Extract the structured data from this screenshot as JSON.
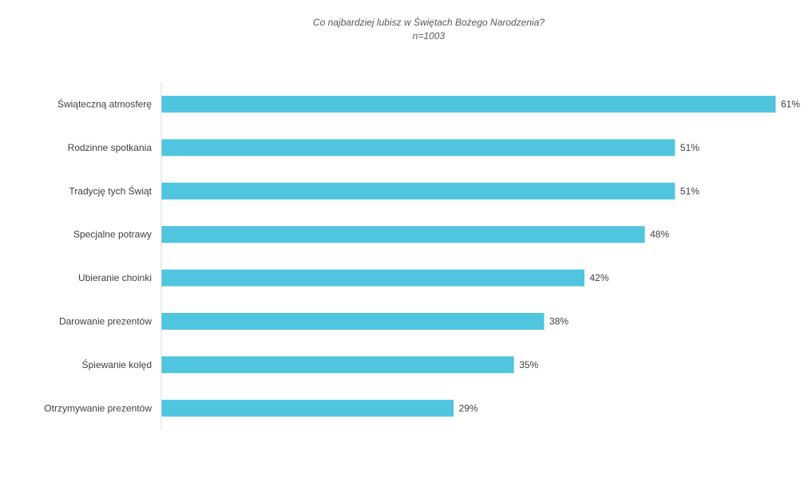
{
  "chart_data": {
    "type": "bar",
    "orientation": "horizontal",
    "title": "Co najbardziej lubisz w Świętach Bożego Narodzenia?",
    "subtitle": "n=1003",
    "categories": [
      "Świąteczną atmosferę",
      "Rodzinne spotkania",
      "Tradycję tych Świąt",
      "Specjalne potrawy",
      "Ubieranie choinki",
      "Darowanie prezentów",
      "Śpiewanie kolęd",
      "Otrzymywanie prezentów"
    ],
    "values": [
      61,
      51,
      51,
      48,
      42,
      38,
      35,
      29
    ],
    "labels": [
      "61%",
      "51%",
      "51%",
      "48%",
      "42%",
      "38%",
      "35%",
      "29%"
    ],
    "unit": "%",
    "xlim": [
      0,
      61
    ],
    "grid": false,
    "color": "#4FC5DF"
  }
}
